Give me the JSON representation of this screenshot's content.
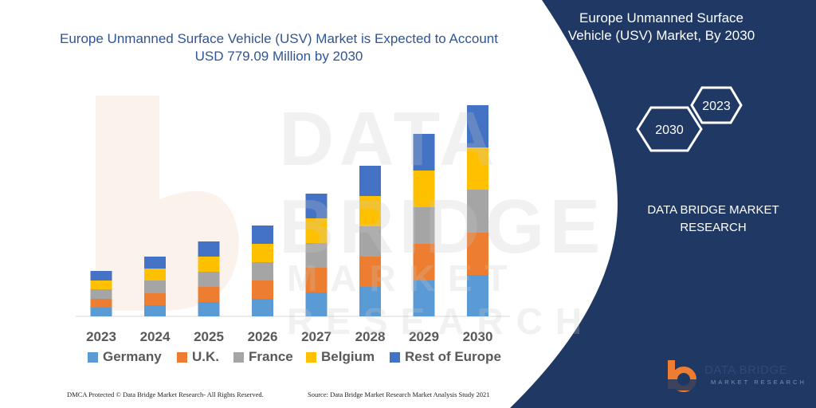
{
  "header": {
    "title": "Europe Unmanned Surface Vehicle (USV) Market is Expected to Account USD 779.09 Million by 2030"
  },
  "panel": {
    "title": "Europe Unmanned Surface Vehicle (USV) Market, By 2030",
    "hex_top": "2023",
    "hex_bottom": "2030",
    "company": "DATA BRIDGE MARKET RESEARCH",
    "color": "#1f3864"
  },
  "watermark": {
    "line1": "DATA BRIDGE",
    "line2": "MARKET RESEARCH"
  },
  "footer": {
    "left": "DMCA Protected © Data Bridge Market Research- All Rights Reserved.",
    "right": "Source: Data Bridge Market Research Market Analysis Study 2021"
  },
  "logo": {
    "main": "DATA BRIDGE",
    "sub": "MARKET RESEARCH"
  },
  "chart_data": {
    "type": "bar",
    "stacked": true,
    "categories": [
      "2023",
      "2024",
      "2025",
      "2026",
      "2027",
      "2028",
      "2029",
      "2030"
    ],
    "series": [
      {
        "name": "Germany",
        "color": "#5b9bd5",
        "values": [
          11,
          14,
          18,
          22,
          30,
          37,
          45,
          52
        ]
      },
      {
        "name": "U.K.",
        "color": "#ed7d31",
        "values": [
          11,
          15,
          19,
          23,
          31,
          38,
          46,
          53
        ]
      },
      {
        "name": "France",
        "color": "#a5a5a5",
        "values": [
          12,
          16,
          19,
          23,
          31,
          38,
          46,
          54
        ]
      },
      {
        "name": "Belgium",
        "color": "#ffc000",
        "values": [
          11,
          15,
          19,
          23,
          31,
          38,
          46,
          53
        ]
      },
      {
        "name": "Rest of Europe",
        "color": "#4472c4",
        "values": [
          12,
          15,
          19,
          23,
          31,
          38,
          46,
          53
        ]
      }
    ],
    "legend": "bottom",
    "grid": false,
    "ylim": [
      0,
      270
    ]
  }
}
